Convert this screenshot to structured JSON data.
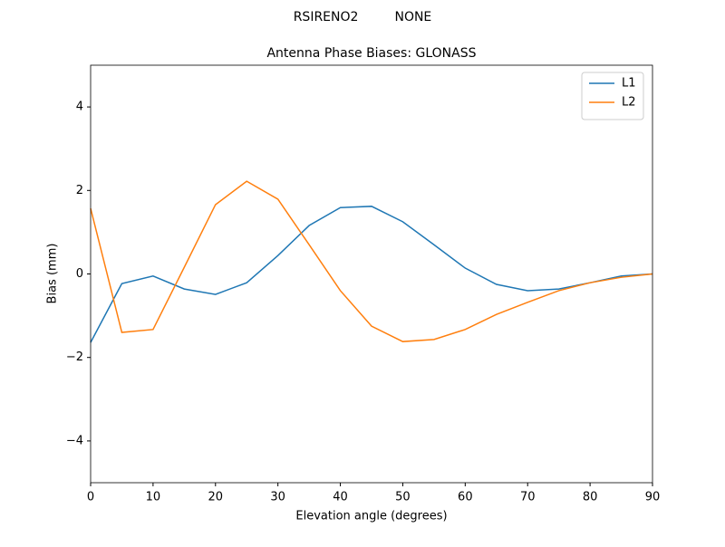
{
  "chart_data": {
    "type": "line",
    "suptitle": "RSIRENO2         NONE",
    "title": "Antenna Phase Biases: GLONASS",
    "xlabel": "Elevation angle (degrees)",
    "ylabel": "Bias (mm)",
    "x": [
      0,
      5,
      10,
      15,
      20,
      25,
      30,
      35,
      40,
      45,
      50,
      55,
      60,
      65,
      70,
      75,
      80,
      85,
      90
    ],
    "series": [
      {
        "name": "L1",
        "color": "#1f77b4",
        "values": [
          -1.64,
          -0.23,
          -0.05,
          -0.36,
          -0.49,
          -0.21,
          0.44,
          1.16,
          1.59,
          1.62,
          1.25,
          0.7,
          0.14,
          -0.25,
          -0.4,
          -0.36,
          -0.21,
          -0.05,
          0.0
        ]
      },
      {
        "name": "L2",
        "color": "#ff7f0e",
        "values": [
          1.57,
          -1.4,
          -1.33,
          0.16,
          1.66,
          2.22,
          1.79,
          0.7,
          -0.4,
          -1.25,
          -1.62,
          -1.57,
          -1.33,
          -0.97,
          -0.68,
          -0.4,
          -0.21,
          -0.08,
          0.0
        ]
      }
    ],
    "xlim": [
      0,
      90
    ],
    "xticks": [
      0,
      10,
      20,
      30,
      40,
      50,
      60,
      70,
      80,
      90
    ],
    "ylim": [
      -5,
      5
    ],
    "yticks": [
      {
        "value": -4,
        "label": "−4"
      },
      {
        "value": -2,
        "label": "−2"
      },
      0,
      2,
      4
    ],
    "legend": "upper right",
    "grid": false
  }
}
